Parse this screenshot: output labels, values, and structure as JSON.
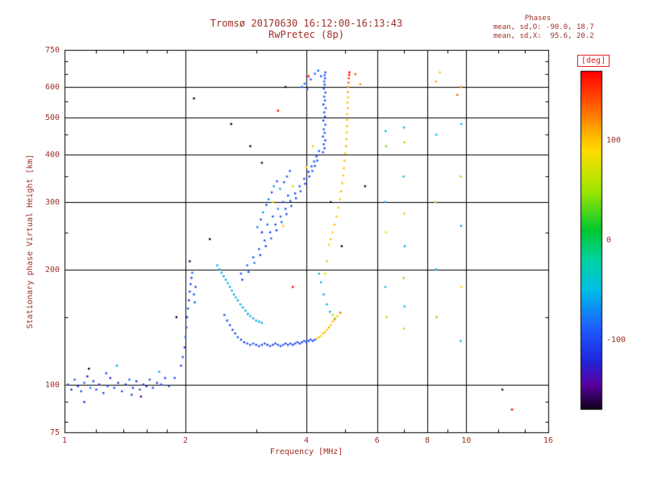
{
  "header": {
    "title": "Tromsø 20170630 16:12:00-16:13:43",
    "subtitle": "RwPretec (8p)"
  },
  "stats": {
    "title": "Phases",
    "o_line": "mean, sd,O: -90.0, 18.7",
    "x_line": "mean, sd,X:  95.6, 20.2"
  },
  "axes": {
    "x": {
      "label": "Frequency [MHz]",
      "min": 1,
      "max": 16,
      "scale": "log",
      "ticks": [
        1,
        2,
        4,
        6,
        8,
        10,
        16
      ],
      "grid": [
        2,
        4,
        6,
        8,
        10
      ],
      "minor": [
        1.2,
        1.4,
        1.6,
        1.8,
        3,
        5,
        7,
        9,
        12,
        14
      ]
    },
    "y": {
      "label": "Stationary phase Virtual Height [km]",
      "min": 75,
      "max": 750,
      "scale": "log",
      "ticks": [
        75,
        100,
        200,
        300,
        400,
        500,
        600,
        750
      ],
      "grid": [
        100,
        200,
        300,
        400,
        500,
        600
      ],
      "minor": [
        80,
        90,
        150,
        250,
        350,
        450,
        550,
        650,
        700
      ]
    }
  },
  "colorbar": {
    "label": "[deg]",
    "ticks": [
      100,
      0,
      -100
    ],
    "max": 170,
    "min": -170,
    "stops": [
      {
        "deg": 170,
        "color": "#ff0000"
      },
      {
        "deg": 140,
        "color": "#ff5000"
      },
      {
        "deg": 110,
        "color": "#ffaa00"
      },
      {
        "deg": 90,
        "color": "#ffdc00"
      },
      {
        "deg": 50,
        "color": "#a0e600"
      },
      {
        "deg": 10,
        "color": "#00c832"
      },
      {
        "deg": -20,
        "color": "#00d2a0"
      },
      {
        "deg": -50,
        "color": "#00bee6"
      },
      {
        "deg": -90,
        "color": "#1e5aff"
      },
      {
        "deg": -120,
        "color": "#1e28dc"
      },
      {
        "deg": -145,
        "color": "#5a00a0"
      },
      {
        "deg": -170,
        "color": "#0f0019"
      }
    ]
  },
  "chart_data": {
    "type": "scatter",
    "title": "Tromsø 20170630 16:12:00-16:13:43",
    "subtitle": "RwPretec (8p)",
    "xlabel": "Frequency [MHz]",
    "ylabel": "Stationary phase Virtual Height [km]",
    "x_scale": "log",
    "y_scale": "log",
    "xlim": [
      1,
      16
    ],
    "ylim": [
      75,
      750
    ],
    "color_label": "[deg]",
    "color_range": [
      -170,
      170
    ],
    "point_format": [
      "frequency_MHz",
      "virtual_height_km",
      "phase_deg"
    ],
    "points": [
      [
        1.02,
        100,
        -95
      ],
      [
        1.04,
        97,
        -110
      ],
      [
        1.06,
        103,
        -85
      ],
      [
        1.08,
        99,
        -120
      ],
      [
        1.1,
        96,
        -100
      ],
      [
        1.12,
        101,
        -90
      ],
      [
        1.14,
        105,
        -130
      ],
      [
        1.16,
        98,
        -75
      ],
      [
        1.18,
        102,
        -105
      ],
      [
        1.2,
        97,
        -95
      ],
      [
        1.22,
        100,
        -115
      ],
      [
        1.25,
        95,
        -100
      ],
      [
        1.28,
        99,
        -88
      ],
      [
        1.3,
        104,
        -125
      ],
      [
        1.33,
        98,
        -95
      ],
      [
        1.36,
        101,
        -108
      ],
      [
        1.39,
        96,
        -92
      ],
      [
        1.42,
        100,
        -118
      ],
      [
        1.45,
        103,
        -80
      ],
      [
        1.48,
        98,
        -100
      ],
      [
        1.51,
        102,
        -112
      ],
      [
        1.54,
        97,
        -96
      ],
      [
        1.57,
        100,
        -104
      ],
      [
        1.6,
        99,
        -125
      ],
      [
        1.63,
        103,
        -90
      ],
      [
        1.66,
        98,
        -100
      ],
      [
        1.7,
        101,
        -110
      ],
      [
        1.74,
        100,
        -95
      ],
      [
        1.78,
        104,
        -105
      ],
      [
        1.82,
        99,
        -100
      ],
      [
        1.15,
        110,
        -170
      ],
      [
        1.35,
        112,
        -60
      ],
      [
        1.55,
        93,
        -140
      ],
      [
        1.72,
        108,
        -55
      ],
      [
        1.27,
        107,
        -98
      ],
      [
        1.47,
        94,
        -102
      ],
      [
        1.12,
        90,
        -120
      ],
      [
        1.88,
        104,
        -95
      ],
      [
        1.95,
        112,
        -100
      ],
      [
        1.97,
        118,
        -95
      ],
      [
        1.99,
        125,
        -105
      ],
      [
        2.0,
        133,
        -90
      ],
      [
        2.01,
        141,
        -110
      ],
      [
        2.02,
        150,
        -98
      ],
      [
        2.03,
        158,
        -92
      ],
      [
        2.04,
        166,
        -108
      ],
      [
        2.05,
        175,
        -100
      ],
      [
        2.06,
        183,
        -96
      ],
      [
        2.07,
        190,
        -104
      ],
      [
        2.1,
        172,
        -95
      ],
      [
        2.12,
        180,
        -100
      ],
      [
        2.11,
        164,
        -90
      ],
      [
        2.08,
        196,
        -85
      ],
      [
        2.5,
        152,
        -95
      ],
      [
        2.54,
        147,
        -100
      ],
      [
        2.58,
        143,
        -90
      ],
      [
        2.62,
        139,
        -105
      ],
      [
        2.66,
        136,
        -98
      ],
      [
        2.7,
        133,
        -92
      ],
      [
        2.75,
        131,
        -100
      ],
      [
        2.8,
        129,
        -108
      ],
      [
        2.85,
        128,
        -95
      ],
      [
        2.9,
        127,
        -100
      ],
      [
        2.95,
        128,
        -90
      ],
      [
        3.0,
        127,
        -105
      ],
      [
        3.05,
        126,
        -98
      ],
      [
        3.1,
        127,
        -100
      ],
      [
        3.15,
        128,
        -95
      ],
      [
        3.2,
        127,
        -110
      ],
      [
        3.25,
        126,
        -92
      ],
      [
        3.3,
        127,
        -100
      ],
      [
        3.35,
        128,
        -105
      ],
      [
        3.4,
        127,
        -95
      ],
      [
        3.45,
        126,
        -100
      ],
      [
        3.5,
        127,
        -90
      ],
      [
        3.55,
        128,
        -108
      ],
      [
        3.6,
        127,
        -100
      ],
      [
        3.65,
        128,
        -96
      ],
      [
        3.7,
        127,
        -102
      ],
      [
        3.75,
        128,
        -95
      ],
      [
        3.8,
        129,
        -100
      ],
      [
        3.85,
        128,
        -105
      ],
      [
        3.9,
        129,
        -98
      ],
      [
        3.95,
        130,
        -100
      ],
      [
        4.0,
        129,
        -95
      ],
      [
        4.05,
        130,
        -103
      ],
      [
        4.1,
        131,
        -100
      ],
      [
        4.15,
        130,
        -97
      ],
      [
        4.2,
        131,
        -100
      ],
      [
        4.25,
        132,
        95
      ],
      [
        4.3,
        133,
        100
      ],
      [
        4.35,
        134,
        90
      ],
      [
        4.4,
        136,
        105
      ],
      [
        4.45,
        137,
        98
      ],
      [
        4.5,
        139,
        100
      ],
      [
        4.55,
        141,
        110
      ],
      [
        4.6,
        143,
        95
      ],
      [
        4.65,
        146,
        100
      ],
      [
        4.7,
        148,
        120
      ],
      [
        4.78,
        151,
        100
      ],
      [
        4.86,
        154,
        135
      ],
      [
        2.4,
        205,
        -55
      ],
      [
        2.43,
        200,
        -60
      ],
      [
        2.46,
        196,
        -50
      ],
      [
        2.49,
        192,
        -65
      ],
      [
        2.52,
        188,
        -58
      ],
      [
        2.55,
        184,
        -45
      ],
      [
        2.58,
        180,
        -62
      ],
      [
        2.61,
        176,
        -55
      ],
      [
        2.64,
        172,
        -60
      ],
      [
        2.67,
        169,
        -48
      ],
      [
        2.7,
        166,
        -58
      ],
      [
        2.74,
        162,
        -52
      ],
      [
        2.78,
        159,
        -60
      ],
      [
        2.82,
        156,
        -55
      ],
      [
        2.86,
        153,
        -65
      ],
      [
        2.9,
        151,
        -50
      ],
      [
        2.95,
        149,
        -58
      ],
      [
        3.0,
        147,
        -55
      ],
      [
        3.05,
        146,
        -60
      ],
      [
        3.1,
        145,
        -52
      ],
      [
        2.75,
        195,
        -90
      ],
      [
        2.77,
        188,
        -110
      ],
      [
        2.85,
        205,
        -85
      ],
      [
        2.87,
        197,
        -100
      ],
      [
        2.95,
        215,
        -95
      ],
      [
        2.97,
        208,
        -75
      ],
      [
        3.05,
        226,
        -90
      ],
      [
        3.07,
        218,
        -105
      ],
      [
        3.15,
        238,
        -88
      ],
      [
        3.17,
        230,
        -100
      ],
      [
        3.25,
        250,
        -92
      ],
      [
        3.27,
        241,
        -80
      ],
      [
        3.35,
        262,
        -95
      ],
      [
        3.37,
        253,
        -108
      ],
      [
        3.45,
        275,
        -90
      ],
      [
        3.47,
        266,
        -85
      ],
      [
        3.55,
        288,
        -95
      ],
      [
        3.57,
        279,
        -100
      ],
      [
        3.65,
        302,
        -88
      ],
      [
        3.67,
        293,
        -95
      ],
      [
        3.75,
        316,
        -92
      ],
      [
        3.77,
        307,
        -105
      ],
      [
        3.85,
        330,
        -90
      ],
      [
        3.87,
        320,
        -85
      ],
      [
        3.95,
        345,
        -95
      ],
      [
        3.97,
        335,
        -100
      ],
      [
        4.05,
        360,
        -90
      ],
      [
        4.07,
        350,
        -92
      ],
      [
        4.12,
        372,
        -95
      ],
      [
        4.14,
        362,
        -88
      ],
      [
        4.18,
        383,
        -90
      ],
      [
        4.2,
        373,
        -100
      ],
      [
        4.24,
        395,
        -92
      ],
      [
        4.26,
        385,
        -95
      ],
      [
        4.3,
        408,
        -90
      ],
      [
        3.02,
        258,
        -70
      ],
      [
        3.08,
        270,
        -95
      ],
      [
        3.12,
        282,
        -60
      ],
      [
        3.18,
        295,
        -100
      ],
      [
        3.22,
        305,
        -80
      ],
      [
        3.28,
        318,
        -95
      ],
      [
        3.32,
        330,
        -65
      ],
      [
        3.38,
        340,
        -90
      ],
      [
        3.1,
        250,
        -110
      ],
      [
        3.2,
        262,
        -85
      ],
      [
        3.3,
        275,
        -95
      ],
      [
        3.4,
        288,
        -70
      ],
      [
        3.5,
        300,
        -100
      ],
      [
        3.6,
        312,
        -90
      ],
      [
        3.44,
        325,
        -55
      ],
      [
        3.52,
        338,
        -95
      ],
      [
        3.58,
        350,
        -85
      ],
      [
        3.64,
        362,
        -90
      ],
      [
        3.3,
        300,
        80
      ],
      [
        3.7,
        330,
        60
      ],
      [
        4.0,
        370,
        90
      ],
      [
        3.5,
        260,
        100
      ],
      [
        4.15,
        420,
        70
      ],
      [
        4.4,
        405,
        -90
      ],
      [
        4.44,
        415,
        -95
      ],
      [
        4.42,
        425,
        -88
      ],
      [
        4.46,
        435,
        -100
      ],
      [
        4.4,
        445,
        -92
      ],
      [
        4.44,
        455,
        -85
      ],
      [
        4.42,
        465,
        -95
      ],
      [
        4.46,
        478,
        -90
      ],
      [
        4.41,
        490,
        -98
      ],
      [
        4.45,
        502,
        -88
      ],
      [
        4.43,
        515,
        -95
      ],
      [
        4.47,
        528,
        -90
      ],
      [
        4.41,
        540,
        -100
      ],
      [
        4.45,
        553,
        -92
      ],
      [
        4.43,
        566,
        -85
      ],
      [
        4.46,
        580,
        -95
      ],
      [
        4.42,
        594,
        -90
      ],
      [
        4.44,
        608,
        -96
      ],
      [
        4.43,
        620,
        -88
      ],
      [
        4.45,
        632,
        -95
      ],
      [
        4.44,
        644,
        -90
      ],
      [
        4.46,
        655,
        -93
      ],
      [
        3.9,
        600,
        -90
      ],
      [
        3.96,
        612,
        -85
      ],
      [
        4.02,
        592,
        -95
      ],
      [
        4.1,
        628,
        -90
      ],
      [
        4.2,
        650,
        -88
      ],
      [
        4.28,
        662,
        -92
      ],
      [
        4.35,
        640,
        -95
      ],
      [
        4.55,
        232,
        95
      ],
      [
        4.6,
        240,
        100
      ],
      [
        4.65,
        250,
        90
      ],
      [
        4.7,
        262,
        105
      ],
      [
        4.75,
        275,
        98
      ],
      [
        4.8,
        290,
        100
      ],
      [
        4.85,
        305,
        92
      ],
      [
        4.88,
        320,
        108
      ],
      [
        4.91,
        336,
        100
      ],
      [
        4.94,
        352,
        96
      ],
      [
        4.96,
        368,
        104
      ],
      [
        4.98,
        385,
        100
      ],
      [
        5.0,
        402,
        95
      ],
      [
        5.02,
        420,
        110
      ],
      [
        5.03,
        438,
        100
      ],
      [
        5.04,
        456,
        98
      ],
      [
        5.05,
        474,
        105
      ],
      [
        5.06,
        492,
        100
      ],
      [
        5.05,
        510,
        96
      ],
      [
        5.07,
        528,
        102
      ],
      [
        5.06,
        546,
        100
      ],
      [
        5.08,
        564,
        95
      ],
      [
        5.07,
        582,
        108
      ],
      [
        5.08,
        600,
        115
      ],
      [
        5.09,
        616,
        130
      ],
      [
        5.1,
        632,
        145
      ],
      [
        5.11,
        645,
        160
      ],
      [
        5.12,
        655,
        170
      ],
      [
        5.3,
        648,
        140
      ],
      [
        5.45,
        610,
        120
      ],
      [
        4.5,
        210,
        60
      ],
      [
        4.45,
        195,
        80
      ],
      [
        4.35,
        185,
        -50
      ],
      [
        4.42,
        172,
        -55
      ],
      [
        4.5,
        162,
        -45
      ],
      [
        4.58,
        155,
        -60
      ],
      [
        4.3,
        195,
        -40
      ],
      [
        4.65,
        152,
        60
      ],
      [
        4.72,
        149,
        45
      ],
      [
        6.3,
        460,
        -50
      ],
      [
        6.32,
        420,
        40
      ],
      [
        6.28,
        300,
        -60
      ],
      [
        6.31,
        250,
        90
      ],
      [
        6.29,
        180,
        -40
      ],
      [
        6.33,
        150,
        60
      ],
      [
        7.0,
        470,
        -55
      ],
      [
        7.02,
        430,
        50
      ],
      [
        6.98,
        350,
        -45
      ],
      [
        7.01,
        280,
        100
      ],
      [
        7.03,
        230,
        -60
      ],
      [
        6.99,
        190,
        45
      ],
      [
        7.02,
        160,
        -50
      ],
      [
        7.0,
        140,
        70
      ],
      [
        8.4,
        620,
        110
      ],
      [
        8.42,
        450,
        -50
      ],
      [
        8.38,
        300,
        60
      ],
      [
        8.41,
        200,
        -55
      ],
      [
        8.43,
        150,
        45
      ],
      [
        9.7,
        600,
        120
      ],
      [
        9.72,
        480,
        -45
      ],
      [
        9.68,
        350,
        55
      ],
      [
        9.71,
        260,
        -60
      ],
      [
        9.73,
        180,
        90
      ],
      [
        9.69,
        130,
        -50
      ],
      [
        13.0,
        86,
        175
      ],
      [
        12.3,
        97,
        -160
      ],
      [
        8.6,
        655,
        100
      ],
      [
        9.5,
        572,
        130
      ],
      [
        2.1,
        560,
        -170
      ],
      [
        2.6,
        480,
        -165
      ],
      [
        3.4,
        520,
        170
      ],
      [
        2.9,
        420,
        -175
      ],
      [
        3.1,
        380,
        -160
      ],
      [
        2.3,
        240,
        -170
      ],
      [
        4.6,
        300,
        -165
      ],
      [
        3.7,
        180,
        175
      ],
      [
        2.05,
        210,
        -160
      ],
      [
        1.9,
        150,
        -170
      ],
      [
        4.9,
        230,
        -170
      ],
      [
        5.6,
        330,
        -165
      ],
      [
        3.55,
        600,
        -170
      ],
      [
        4.05,
        640,
        170
      ]
    ]
  }
}
